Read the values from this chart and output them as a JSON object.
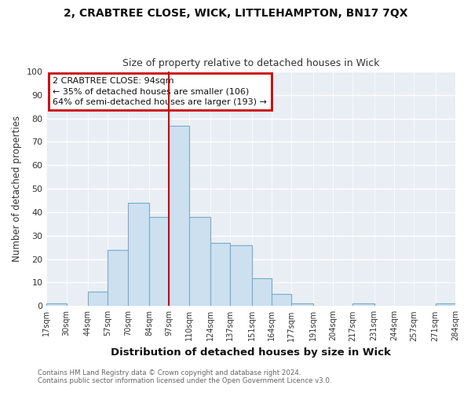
{
  "title_line1": "2, CRABTREE CLOSE, WICK, LITTLEHAMPTON, BN17 7QX",
  "title_line2": "Size of property relative to detached houses in Wick",
  "xlabel": "Distribution of detached houses by size in Wick",
  "ylabel": "Number of detached properties",
  "bar_color": "#cce0f0",
  "bar_edgecolor": "#7aaac8",
  "ax_background_color": "#e8eef4",
  "fig_background_color": "#ffffff",
  "grid_color": "#ffffff",
  "vline_x": 97,
  "vline_color": "#cc0000",
  "bin_edges": [
    17,
    30,
    44,
    57,
    70,
    84,
    97,
    110,
    124,
    137,
    151,
    164,
    177,
    191,
    204,
    217,
    231,
    244,
    257,
    271,
    284
  ],
  "bin_heights": [
    1,
    0,
    6,
    24,
    44,
    38,
    77,
    38,
    27,
    26,
    12,
    5,
    1,
    0,
    0,
    1,
    0,
    0,
    0,
    1
  ],
  "tick_labels": [
    "17sqm",
    "30sqm",
    "44sqm",
    "57sqm",
    "70sqm",
    "84sqm",
    "97sqm",
    "110sqm",
    "124sqm",
    "137sqm",
    "151sqm",
    "164sqm",
    "177sqm",
    "191sqm",
    "204sqm",
    "217sqm",
    "231sqm",
    "244sqm",
    "257sqm",
    "271sqm",
    "284sqm"
  ],
  "ylim": [
    0,
    100
  ],
  "yticks": [
    0,
    10,
    20,
    30,
    40,
    50,
    60,
    70,
    80,
    90,
    100
  ],
  "annotation_title": "2 CRABTREE CLOSE: 94sqm",
  "annotation_line2": "← 35% of detached houses are smaller (106)",
  "annotation_line3": "64% of semi-detached houses are larger (193) →",
  "annotation_box_color": "#cc0000",
  "footer_line1": "Contains HM Land Registry data © Crown copyright and database right 2024.",
  "footer_line2": "Contains public sector information licensed under the Open Government Licence v3.0.",
  "figsize": [
    6.0,
    5.0
  ],
  "dpi": 100
}
